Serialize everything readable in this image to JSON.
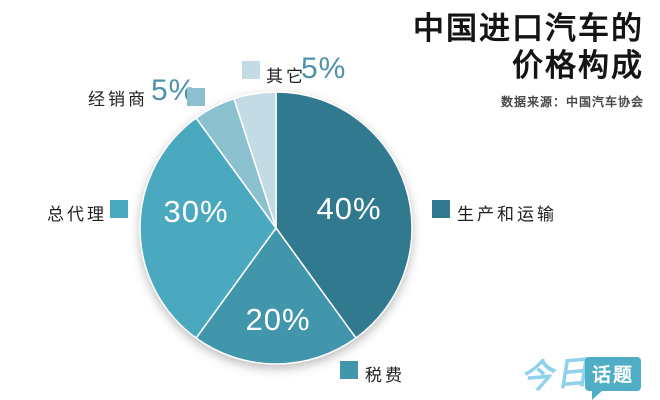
{
  "title": {
    "line1": "中国进口汽车的",
    "line2": "价格构成",
    "source": "数据来源：中国汽车协会"
  },
  "chart_data": {
    "type": "pie",
    "title": "中国进口汽车的价格构成",
    "source": "数据来源：中国汽车协会",
    "start_angle_deg": 0,
    "direction": "clockwise",
    "legend_position": "around",
    "slices": [
      {
        "label": "生产和运输",
        "value": 40,
        "pct_label": "40%",
        "color": "#31798f"
      },
      {
        "label": "税费",
        "value": 20,
        "pct_label": "20%",
        "color": "#4196ac"
      },
      {
        "label": "总代理",
        "value": 30,
        "pct_label": "30%",
        "color": "#4ba9bf"
      },
      {
        "label": "经销商",
        "value": 5,
        "pct_label": "5%",
        "color": "#8bc0cf"
      },
      {
        "label": "其它",
        "value": 5,
        "pct_label": "5%",
        "color": "#c3dbe5"
      }
    ]
  },
  "logo": {
    "part1": "今日",
    "part2": "话题",
    "box_color": "#4faec6",
    "script_color": "#90d1eb"
  },
  "colors": {
    "pct_text": "#ffffff",
    "legend_pct_text": "#4e92ab",
    "title_text": "#141414",
    "subtitle_text": "#4a4a4a"
  }
}
